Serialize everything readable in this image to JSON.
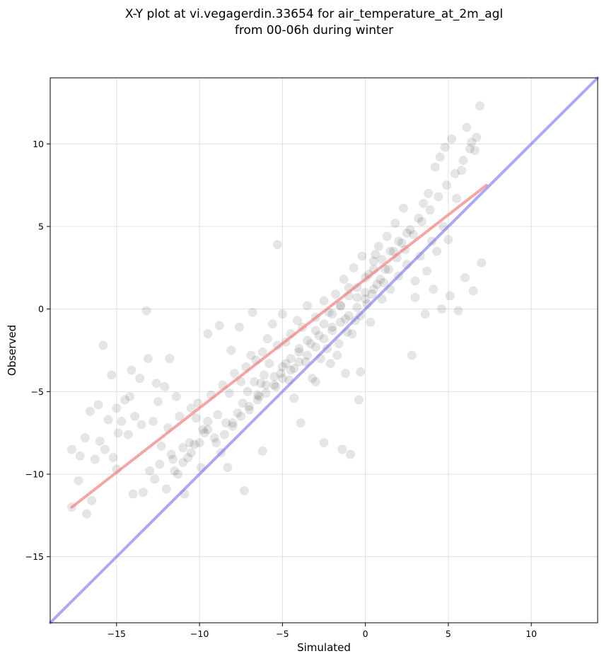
{
  "chart_data": {
    "type": "scatter",
    "title_line1": "X-Y plot at vi.vegagerdin.33654 for air_temperature_at_2m_agl",
    "title_line2": "from 00-06h during winter",
    "xlabel": "Simulated",
    "ylabel": "Observed",
    "xlim": [
      -19,
      14
    ],
    "ylim": [
      -19,
      14
    ],
    "xticks": [
      -15,
      -10,
      -5,
      0,
      5,
      10
    ],
    "yticks": [
      -15,
      -10,
      -5,
      0,
      5,
      10
    ],
    "xtick_labels": [
      "−15",
      "−10",
      "−5",
      "0",
      "5",
      "10"
    ],
    "ytick_labels": [
      "−15",
      "−10",
      "−5",
      "0",
      "5",
      "10"
    ],
    "grid": true,
    "colors": {
      "points": "#000000",
      "fit_line": "#f08080",
      "identity_line": "#7070f0",
      "grid": "#e0e0e0"
    },
    "fit_line": {
      "x": [
        -17.7,
        7.3
      ],
      "y": [
        -12.0,
        7.5
      ]
    },
    "identity_line": {
      "x": [
        -19,
        14
      ],
      "y": [
        -19,
        14
      ]
    },
    "points": {
      "x": [
        -17.7,
        -17.3,
        -16.8,
        -16.5,
        -17.2,
        -16.6,
        -17.7,
        -16.3,
        -16.9,
        -15.7,
        -15.5,
        -15.2,
        -14.9,
        -15.0,
        -15.3,
        -14.5,
        -14.7,
        -14.2,
        -14.3,
        -13.9,
        -13.6,
        -13.5,
        -13.4,
        -13.1,
        -12.8,
        -12.5,
        -12.4,
        -12.1,
        -12.7,
        -11.9,
        -11.7,
        -11.4,
        -11.3,
        -11.2,
        -11.0,
        -10.9,
        -10.7,
        -10.5,
        -10.3,
        -10.1,
        -9.9,
        -9.8,
        -9.5,
        -9.3,
        -9.1,
        -8.9,
        -8.7,
        -8.6,
        -8.4,
        -8.2,
        -8.0,
        -7.9,
        -7.7,
        -7.5,
        -7.4,
        -7.2,
        -7.1,
        -6.9,
        -6.7,
        -6.6,
        -6.4,
        -6.2,
        -6.1,
        -5.9,
        -5.8,
        -5.6,
        -5.4,
        -5.3,
        -5.1,
        -5.0,
        -4.8,
        -4.6,
        -4.5,
        -4.3,
        -4.1,
        -4.0,
        -3.8,
        -3.6,
        -3.5,
        -3.3,
        -3.2,
        -3.0,
        -2.8,
        -2.7,
        -2.5,
        -2.3,
        -2.2,
        -2.0,
        -1.8,
        -1.7,
        -1.5,
        -1.3,
        -1.2,
        -1.0,
        -0.8,
        -0.7,
        -0.5,
        -0.3,
        -0.2,
        0.0,
        0.2,
        0.3,
        0.5,
        0.7,
        0.8,
        1.0,
        1.2,
        1.3,
        1.5,
        1.7,
        1.8,
        2.0,
        2.2,
        2.3,
        2.5,
        2.7,
        2.8,
        3.0,
        3.2,
        3.3,
        3.5,
        3.7,
        3.8,
        4.0,
        4.2,
        4.3,
        4.5,
        4.7,
        4.8,
        5.0,
        5.2,
        5.5,
        5.8,
        6.1,
        6.4,
        6.6,
        6.9,
        7.0,
        -5.3,
        -1.2,
        -0.9,
        -0.4,
        -2.5,
        -4.3,
        -3.9,
        -6.3,
        -6.8,
        -7.6,
        -8.1,
        -8.8,
        -9.5,
        -10.2,
        -11.8,
        -12.6,
        -13.2,
        -14.1,
        -15.8,
        -16.1,
        -3.0,
        -2.1,
        -1.6,
        -1.1,
        -0.6,
        0.1,
        0.4,
        0.9,
        1.4,
        1.9,
        2.4,
        2.9,
        3.4,
        3.9,
        4.4,
        4.9,
        5.4,
        5.9,
        6.3,
        6.7,
        -7.0,
        -6.5,
        -6.0,
        -5.5,
        -5.0,
        -4.5,
        -4.0,
        -3.5,
        -3.0,
        -2.5,
        -2.0,
        -1.5,
        -1.0,
        -0.5,
        0.0,
        0.5,
        1.0,
        1.5,
        2.0,
        2.5,
        -9.0,
        -8.5,
        -8.0,
        -7.5,
        -7.0,
        -6.5,
        -6.0,
        -5.5,
        -5.0,
        -4.5,
        -4.0,
        -3.5,
        -3.0,
        -2.5,
        -2.0,
        -1.5,
        -1.0,
        -0.5,
        0.0,
        0.5,
        -11.5,
        -11.0,
        -10.5,
        -10.0,
        -9.5,
        -12.0,
        -13.0,
        -14.0,
        -15.0,
        -16.0,
        3.0,
        3.6,
        4.1,
        4.6,
        5.1,
        5.6,
        6.0,
        6.5,
        -1.4,
        -0.3,
        0.6,
        1.1,
        -4.8,
        -6.2,
        -7.3,
        -8.3,
        -9.7,
        -10.6,
        -11.6,
        -12.3
      ],
      "y": [
        -12.0,
        -10.4,
        -12.4,
        -11.6,
        -8.9,
        -6.2,
        -8.5,
        -9.1,
        -7.8,
        -8.5,
        -6.7,
        -9.0,
        -7.5,
        -6.0,
        -4.0,
        -5.5,
        -6.8,
        -5.3,
        -7.6,
        -6.5,
        -4.2,
        -7.0,
        -11.1,
        -3.0,
        -6.8,
        -5.6,
        -9.4,
        -4.7,
        -10.3,
        -7.2,
        -8.8,
        -5.3,
        -10.0,
        -6.5,
        -8.4,
        -11.2,
        -9.0,
        -6.0,
        -8.2,
        -5.7,
        -9.6,
        -7.3,
        -6.8,
        -5.2,
        -7.8,
        -6.4,
        -8.7,
        -4.6,
        -6.9,
        -5.1,
        -7.1,
        -3.9,
        -6.3,
        -4.4,
        -5.7,
        -3.5,
        -5.0,
        -2.8,
        -4.4,
        -3.1,
        -5.3,
        -2.6,
        -4.0,
        -1.8,
        -3.3,
        -0.9,
        -4.7,
        -2.2,
        -3.9,
        -0.3,
        -2.0,
        -4.3,
        -1.5,
        -3.6,
        -0.7,
        -2.6,
        -1.1,
        -3.2,
        0.2,
        -2.1,
        -4.2,
        -0.5,
        -1.6,
        -3.0,
        0.5,
        -2.4,
        -0.2,
        -1.1,
        0.9,
        -2.8,
        0.2,
        1.8,
        -0.6,
        1.3,
        -1.5,
        2.5,
        0.7,
        -0.4,
        3.2,
        1.0,
        2.1,
        -0.8,
        2.9,
        1.5,
        3.8,
        0.6,
        2.4,
        4.4,
        1.2,
        3.5,
        5.2,
        2.0,
        4.0,
        6.1,
        2.7,
        4.8,
        -2.8,
        1.7,
        5.5,
        3.2,
        6.4,
        2.3,
        7.0,
        4.1,
        8.6,
        3.5,
        9.2,
        5.0,
        9.8,
        4.2,
        10.3,
        6.7,
        8.4,
        11.0,
        10.1,
        9.6,
        12.3,
        2.8,
        3.9,
        -3.9,
        -8.8,
        -5.5,
        -8.1,
        -5.4,
        -6.9,
        -4.5,
        -0.2,
        -1.1,
        -2.5,
        -1.0,
        -1.5,
        -6.6,
        -3.0,
        -4.5,
        -0.1,
        -3.7,
        -2.2,
        -5.8,
        -4.4,
        -3.3,
        -2.1,
        -1.4,
        -0.7,
        0.3,
        0.9,
        1.8,
        2.4,
        3.1,
        3.6,
        4.5,
        5.3,
        6.0,
        6.8,
        7.5,
        8.2,
        9.0,
        9.7,
        10.4,
        -5.9,
        -5.2,
        -4.6,
        -4.1,
        -3.5,
        -3.0,
        -2.4,
        -1.9,
        -1.3,
        -0.9,
        -0.3,
        0.2,
        0.8,
        1.3,
        1.9,
        2.4,
        3.0,
        3.5,
        4.1,
        4.6,
        -8.1,
        -7.6,
        -6.9,
        -6.5,
        -6.1,
        -5.5,
        -5.1,
        -4.6,
        -4.2,
        -3.7,
        -3.2,
        -2.8,
        -2.3,
        -1.8,
        -1.3,
        -0.8,
        -0.4,
        0.1,
        0.6,
        1.2,
        -9.8,
        -9.3,
        -8.7,
        -8.1,
        -7.3,
        -10.9,
        -9.8,
        -11.2,
        -9.7,
        -8.0,
        0.7,
        -0.3,
        1.2,
        0.0,
        0.8,
        -0.1,
        1.9,
        1.1,
        -8.5,
        -3.8,
        3.3,
        1.6,
        -3.3,
        -8.6,
        -11.0,
        -9.6,
        -7.5,
        -8.1,
        -9.1,
        -8.3
      ]
    }
  }
}
